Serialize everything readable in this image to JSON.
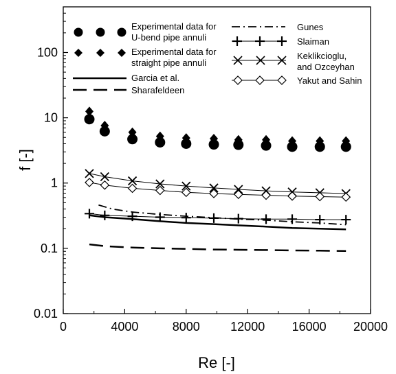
{
  "chart_data": {
    "type": "scatter",
    "xlabel": "Re [-]",
    "ylabel": "f [-]",
    "xlim": [
      0,
      20000
    ],
    "ylim": [
      0.01,
      500
    ],
    "yscale": "log",
    "x_ticks": [
      "0",
      "4000",
      "8000",
      "12000",
      "16000",
      "20000"
    ],
    "y_ticks": [
      "0.01",
      "0.1",
      "1",
      "10",
      "100"
    ],
    "grid": false,
    "legend_position": "top",
    "series": [
      {
        "name": "Experimental data for U-bend pipe annuli",
        "kind": "points",
        "marker": "circle",
        "x": [
          1700,
          2700,
          4500,
          6300,
          8000,
          9800,
          11400,
          13200,
          14900,
          16700,
          18400
        ],
        "y": [
          9.5,
          6.2,
          4.7,
          4.2,
          4.0,
          3.9,
          3.85,
          3.75,
          3.6,
          3.6,
          3.6
        ]
      },
      {
        "name": "Experimental data for straight pipe annuli",
        "kind": "points",
        "marker": "diamond",
        "x": [
          1700,
          2700,
          4500,
          6300,
          8000,
          9800,
          11400,
          13200,
          14900,
          16700,
          18400
        ],
        "y": [
          12.5,
          7.6,
          6.0,
          5.2,
          4.9,
          4.8,
          4.6,
          4.6,
          4.4,
          4.4,
          4.4
        ]
      },
      {
        "name": "Garcia et al.",
        "kind": "line",
        "dash": "solid",
        "x": [
          1700,
          2700,
          4500,
          6300,
          8000,
          9800,
          11400,
          13200,
          14900,
          16700,
          18400
        ],
        "y": [
          0.32,
          0.3,
          0.28,
          0.26,
          0.245,
          0.235,
          0.225,
          0.215,
          0.205,
          0.2,
          0.195
        ]
      },
      {
        "name": "Sharafeldeen",
        "kind": "line",
        "dash": "longdash",
        "x": [
          1700,
          2700,
          4500,
          6300,
          8000,
          9800,
          11400,
          13200,
          14900,
          16700,
          18400
        ],
        "y": [
          0.115,
          0.108,
          0.103,
          0.1,
          0.098,
          0.096,
          0.095,
          0.094,
          0.093,
          0.092,
          0.091
        ]
      },
      {
        "name": "Gunes",
        "kind": "line",
        "dash": "dashdot",
        "x": [
          2300,
          3200,
          4500,
          6300,
          8000,
          9800,
          11400,
          13200,
          14900,
          16700,
          18400
        ],
        "y": [
          0.46,
          0.4,
          0.36,
          0.33,
          0.31,
          0.295,
          0.28,
          0.27,
          0.255,
          0.245,
          0.23
        ]
      },
      {
        "name": "Slaiman",
        "kind": "line+marker",
        "marker": "plus",
        "x": [
          1700,
          2700,
          4500,
          6300,
          8000,
          9800,
          11400,
          13200,
          14900,
          16700,
          18400
        ],
        "y": [
          0.34,
          0.32,
          0.31,
          0.3,
          0.295,
          0.29,
          0.285,
          0.28,
          0.28,
          0.275,
          0.275
        ]
      },
      {
        "name": "Keklikcioglu, and Ozceyhan",
        "kind": "line+marker",
        "marker": "x",
        "x": [
          1700,
          2700,
          4500,
          6300,
          8000,
          9800,
          11400,
          13200,
          14900,
          16700,
          18400
        ],
        "y": [
          1.4,
          1.25,
          1.08,
          0.97,
          0.9,
          0.84,
          0.8,
          0.76,
          0.73,
          0.71,
          0.69
        ]
      },
      {
        "name": "Yakut and Sahin",
        "kind": "line+marker",
        "marker": "open-diamond",
        "x": [
          1700,
          2700,
          4500,
          6300,
          8000,
          9800,
          11400,
          13200,
          14900,
          16700,
          18400
        ],
        "y": [
          1.02,
          0.93,
          0.83,
          0.77,
          0.72,
          0.69,
          0.67,
          0.65,
          0.63,
          0.62,
          0.61
        ]
      }
    ],
    "legend": [
      {
        "text": "Experimental data for",
        "text2": "U-bend  pipe annuli"
      },
      {
        "text": "Experimental data for",
        "text2": "straight pipe annuli"
      },
      {
        "text": "Garcia et al."
      },
      {
        "text": "Sharafeldeen"
      },
      {
        "text": "Gunes"
      },
      {
        "text": "Slaiman"
      },
      {
        "text": "Keklikcioglu,",
        "text2": "and  Ozceyhan"
      },
      {
        "text": "Yakut and Sahin"
      }
    ]
  }
}
